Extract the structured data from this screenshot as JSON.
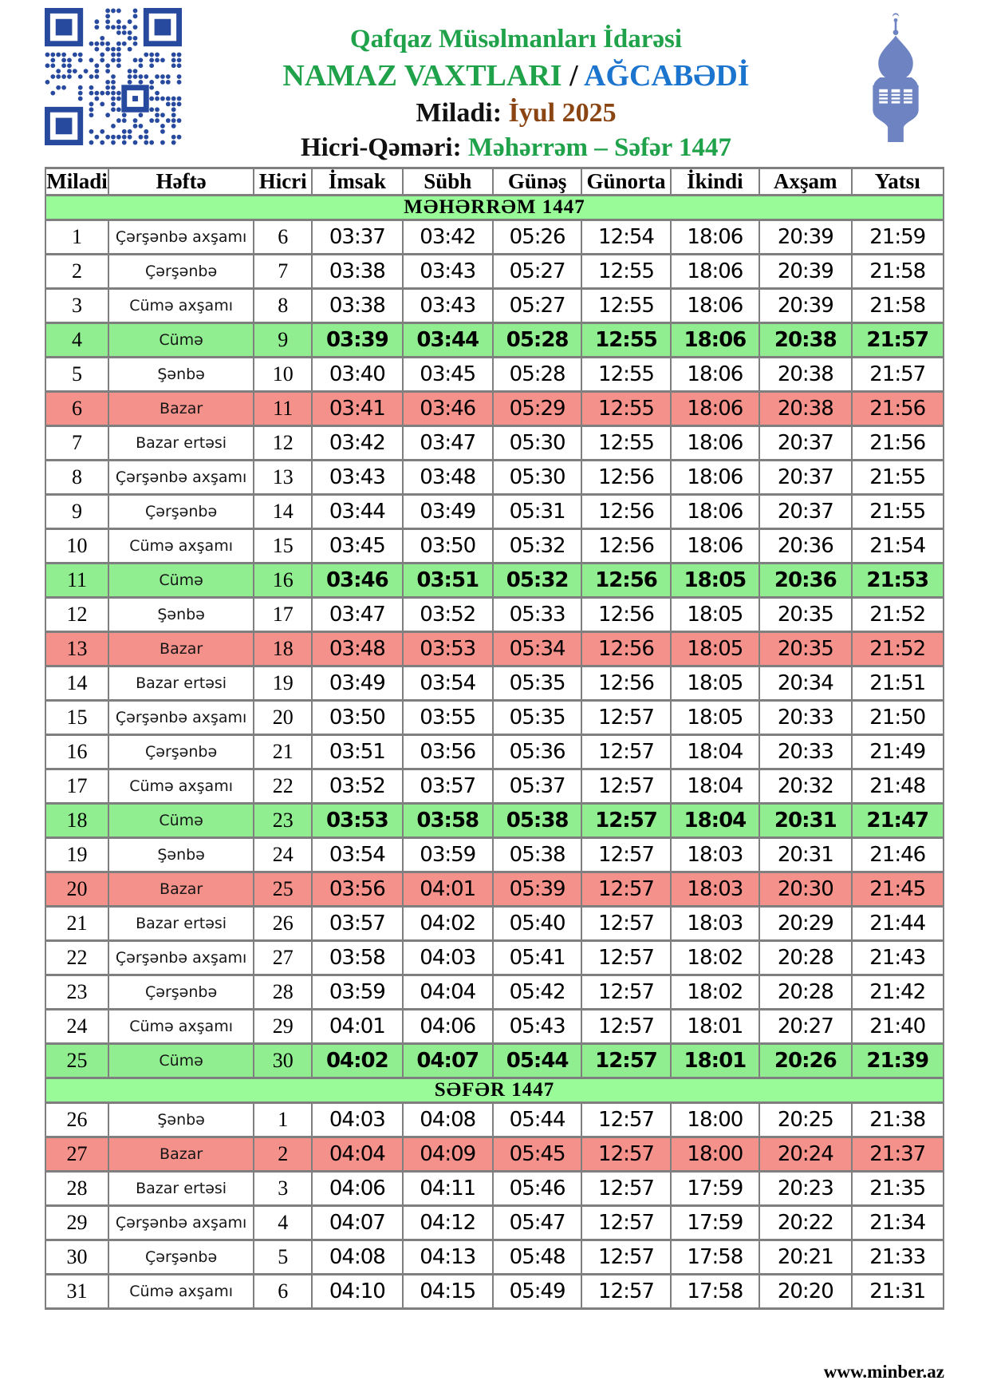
{
  "header": {
    "org": "Qafqaz Müsəlmanları İdarəsi",
    "title": "NAMAZ VAXTLARI",
    "separator": "/",
    "city": "AĞCABƏDİ",
    "miladi_label": "Miladi:",
    "miladi_value": "İyul 2025",
    "hicri_label": "Hicri-Qəməri:",
    "hicri_value": "Məhərrəm – Səfər 1447"
  },
  "icons": {
    "qr_code": "qr-code",
    "minaret": "minaret-silhouette"
  },
  "colors": {
    "green_accent": "#1FA24A",
    "blue_accent": "#1B74CE",
    "brown_accent": "#8B4513",
    "banner_bg": "#98FB98",
    "friday_row_bg": "#90EE90",
    "sunday_row_bg": "#F5918B",
    "qr_blue": "#27499E",
    "minaret_blue": "#6E84C2"
  },
  "table": {
    "columns": [
      "Miladi",
      "Həftə",
      "Hicri",
      "İmsak",
      "Sübh",
      "Günəş",
      "Günorta",
      "İkindi",
      "Axşam",
      "Yatsı"
    ],
    "sections": [
      {
        "banner": "MƏHƏRRƏM 1447",
        "rows": [
          {
            "miladi": "1",
            "hefte": "Çərşənbə axşamı",
            "hicri": "6",
            "times": [
              "03:37",
              "03:42",
              "05:26",
              "12:54",
              "18:06",
              "20:39",
              "21:59"
            ],
            "highlight": "none"
          },
          {
            "miladi": "2",
            "hefte": "Çərşənbə",
            "hicri": "7",
            "times": [
              "03:38",
              "03:43",
              "05:27",
              "12:55",
              "18:06",
              "20:39",
              "21:58"
            ],
            "highlight": "none"
          },
          {
            "miladi": "3",
            "hefte": "Cümə axşamı",
            "hicri": "8",
            "times": [
              "03:38",
              "03:43",
              "05:27",
              "12:55",
              "18:06",
              "20:39",
              "21:58"
            ],
            "highlight": "none"
          },
          {
            "miladi": "4",
            "hefte": "Cümə",
            "hicri": "9",
            "times": [
              "03:39",
              "03:44",
              "05:28",
              "12:55",
              "18:06",
              "20:38",
              "21:57"
            ],
            "highlight": "friday"
          },
          {
            "miladi": "5",
            "hefte": "Şənbə",
            "hicri": "10",
            "times": [
              "03:40",
              "03:45",
              "05:28",
              "12:55",
              "18:06",
              "20:38",
              "21:57"
            ],
            "highlight": "none"
          },
          {
            "miladi": "6",
            "hefte": "Bazar",
            "hicri": "11",
            "times": [
              "03:41",
              "03:46",
              "05:29",
              "12:55",
              "18:06",
              "20:38",
              "21:56"
            ],
            "highlight": "sunday"
          },
          {
            "miladi": "7",
            "hefte": "Bazar ertəsi",
            "hicri": "12",
            "times": [
              "03:42",
              "03:47",
              "05:30",
              "12:55",
              "18:06",
              "20:37",
              "21:56"
            ],
            "highlight": "none"
          },
          {
            "miladi": "8",
            "hefte": "Çərşənbə axşamı",
            "hicri": "13",
            "times": [
              "03:43",
              "03:48",
              "05:30",
              "12:56",
              "18:06",
              "20:37",
              "21:55"
            ],
            "highlight": "none"
          },
          {
            "miladi": "9",
            "hefte": "Çərşənbə",
            "hicri": "14",
            "times": [
              "03:44",
              "03:49",
              "05:31",
              "12:56",
              "18:06",
              "20:37",
              "21:55"
            ],
            "highlight": "none"
          },
          {
            "miladi": "10",
            "hefte": "Cümə axşamı",
            "hicri": "15",
            "times": [
              "03:45",
              "03:50",
              "05:32",
              "12:56",
              "18:06",
              "20:36",
              "21:54"
            ],
            "highlight": "none"
          },
          {
            "miladi": "11",
            "hefte": "Cümə",
            "hicri": "16",
            "times": [
              "03:46",
              "03:51",
              "05:32",
              "12:56",
              "18:05",
              "20:36",
              "21:53"
            ],
            "highlight": "friday"
          },
          {
            "miladi": "12",
            "hefte": "Şənbə",
            "hicri": "17",
            "times": [
              "03:47",
              "03:52",
              "05:33",
              "12:56",
              "18:05",
              "20:35",
              "21:52"
            ],
            "highlight": "none"
          },
          {
            "miladi": "13",
            "hefte": "Bazar",
            "hicri": "18",
            "times": [
              "03:48",
              "03:53",
              "05:34",
              "12:56",
              "18:05",
              "20:35",
              "21:52"
            ],
            "highlight": "sunday"
          },
          {
            "miladi": "14",
            "hefte": "Bazar ertəsi",
            "hicri": "19",
            "times": [
              "03:49",
              "03:54",
              "05:35",
              "12:56",
              "18:05",
              "20:34",
              "21:51"
            ],
            "highlight": "none"
          },
          {
            "miladi": "15",
            "hefte": "Çərşənbə axşamı",
            "hicri": "20",
            "times": [
              "03:50",
              "03:55",
              "05:35",
              "12:57",
              "18:05",
              "20:33",
              "21:50"
            ],
            "highlight": "none"
          },
          {
            "miladi": "16",
            "hefte": "Çərşənbə",
            "hicri": "21",
            "times": [
              "03:51",
              "03:56",
              "05:36",
              "12:57",
              "18:04",
              "20:33",
              "21:49"
            ],
            "highlight": "none"
          },
          {
            "miladi": "17",
            "hefte": "Cümə axşamı",
            "hicri": "22",
            "times": [
              "03:52",
              "03:57",
              "05:37",
              "12:57",
              "18:04",
              "20:32",
              "21:48"
            ],
            "highlight": "none"
          },
          {
            "miladi": "18",
            "hefte": "Cümə",
            "hicri": "23",
            "times": [
              "03:53",
              "03:58",
              "05:38",
              "12:57",
              "18:04",
              "20:31",
              "21:47"
            ],
            "highlight": "friday"
          },
          {
            "miladi": "19",
            "hefte": "Şənbə",
            "hicri": "24",
            "times": [
              "03:54",
              "03:59",
              "05:38",
              "12:57",
              "18:03",
              "20:31",
              "21:46"
            ],
            "highlight": "none"
          },
          {
            "miladi": "20",
            "hefte": "Bazar",
            "hicri": "25",
            "times": [
              "03:56",
              "04:01",
              "05:39",
              "12:57",
              "18:03",
              "20:30",
              "21:45"
            ],
            "highlight": "sunday"
          },
          {
            "miladi": "21",
            "hefte": "Bazar ertəsi",
            "hicri": "26",
            "times": [
              "03:57",
              "04:02",
              "05:40",
              "12:57",
              "18:03",
              "20:29",
              "21:44"
            ],
            "highlight": "none"
          },
          {
            "miladi": "22",
            "hefte": "Çərşənbə axşamı",
            "hicri": "27",
            "times": [
              "03:58",
              "04:03",
              "05:41",
              "12:57",
              "18:02",
              "20:28",
              "21:43"
            ],
            "highlight": "none"
          },
          {
            "miladi": "23",
            "hefte": "Çərşənbə",
            "hicri": "28",
            "times": [
              "03:59",
              "04:04",
              "05:42",
              "12:57",
              "18:02",
              "20:28",
              "21:42"
            ],
            "highlight": "none"
          },
          {
            "miladi": "24",
            "hefte": "Cümə axşamı",
            "hicri": "29",
            "times": [
              "04:01",
              "04:06",
              "05:43",
              "12:57",
              "18:01",
              "20:27",
              "21:40"
            ],
            "highlight": "none"
          },
          {
            "miladi": "25",
            "hefte": "Cümə",
            "hicri": "30",
            "times": [
              "04:02",
              "04:07",
              "05:44",
              "12:57",
              "18:01",
              "20:26",
              "21:39"
            ],
            "highlight": "friday"
          }
        ]
      },
      {
        "banner": "SƏFƏR 1447",
        "rows": [
          {
            "miladi": "26",
            "hefte": "Şənbə",
            "hicri": "1",
            "times": [
              "04:03",
              "04:08",
              "05:44",
              "12:57",
              "18:00",
              "20:25",
              "21:38"
            ],
            "highlight": "none"
          },
          {
            "miladi": "27",
            "hefte": "Bazar",
            "hicri": "2",
            "times": [
              "04:04",
              "04:09",
              "05:45",
              "12:57",
              "18:00",
              "20:24",
              "21:37"
            ],
            "highlight": "sunday"
          },
          {
            "miladi": "28",
            "hefte": "Bazar ertəsi",
            "hicri": "3",
            "times": [
              "04:06",
              "04:11",
              "05:46",
              "12:57",
              "17:59",
              "20:23",
              "21:35"
            ],
            "highlight": "none"
          },
          {
            "miladi": "29",
            "hefte": "Çərşənbə axşamı",
            "hicri": "4",
            "times": [
              "04:07",
              "04:12",
              "05:47",
              "12:57",
              "17:59",
              "20:22",
              "21:34"
            ],
            "highlight": "none"
          },
          {
            "miladi": "30",
            "hefte": "Çərşənbə",
            "hicri": "5",
            "times": [
              "04:08",
              "04:13",
              "05:48",
              "12:57",
              "17:58",
              "20:21",
              "21:33"
            ],
            "highlight": "none"
          },
          {
            "miladi": "31",
            "hefte": "Cümə axşamı",
            "hicri": "6",
            "times": [
              "04:10",
              "04:15",
              "05:49",
              "12:57",
              "17:58",
              "20:20",
              "21:31"
            ],
            "highlight": "none"
          }
        ]
      }
    ]
  },
  "footer": {
    "site": "www.minber.az"
  }
}
